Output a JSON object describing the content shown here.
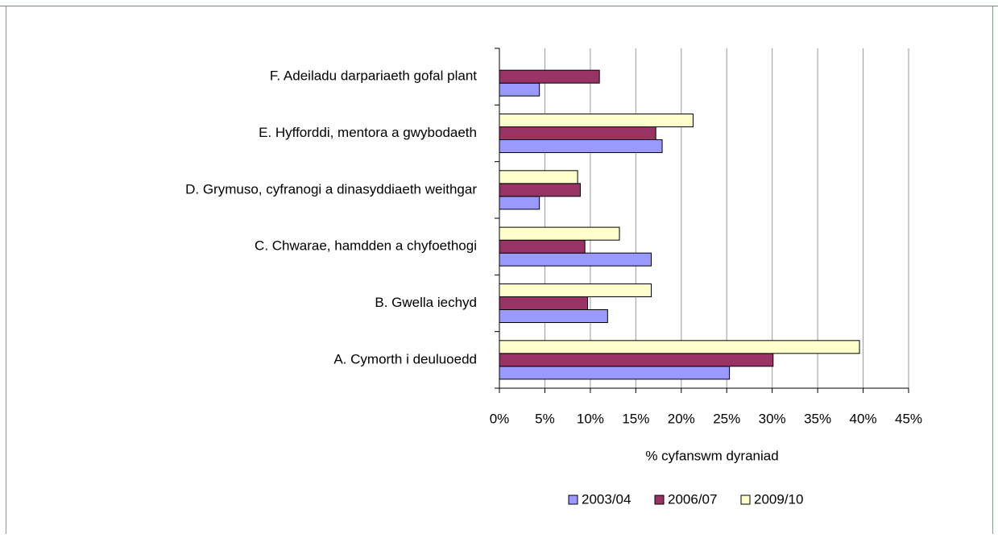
{
  "chart_data": {
    "type": "hbar",
    "categories": [
      "A. Cymorth i deuluoedd",
      "B. Gwella iechyd ",
      "C. Chwarae, hamdden a chyfoethogi",
      "D. Grymuso, cyfranogi a dinasyddiaeth weithgar",
      "E. Hyfforddi, mentora a gwybodaeth",
      "F. Adeiladu darpariaeth gofal plant"
    ],
    "series": [
      {
        "name": "2003/04",
        "color": "#9999ff",
        "values": [
          25.3,
          11.9,
          16.7,
          4.4,
          17.9,
          4.4
        ]
      },
      {
        "name": "2006/07",
        "color": "#993366",
        "values": [
          30.1,
          9.7,
          9.4,
          8.9,
          17.2,
          11.0
        ]
      },
      {
        "name": "2009/10",
        "color": "#ffffcc",
        "values": [
          39.6,
          16.7,
          13.2,
          8.6,
          21.3,
          null
        ]
      }
    ],
    "x_label": "% cyfanswm dyraniad",
    "xlim": [
      0,
      45
    ],
    "xticks": [
      {
        "value": 0,
        "label": "0%"
      },
      {
        "value": 5,
        "label": "5%"
      },
      {
        "value": 10,
        "label": "10%"
      },
      {
        "value": 15,
        "label": "15%"
      },
      {
        "value": 20,
        "label": "20%"
      },
      {
        "value": 25,
        "label": "25%"
      },
      {
        "value": 30,
        "label": "30%"
      },
      {
        "value": 35,
        "label": "35%"
      },
      {
        "value": 40,
        "label": "40%"
      },
      {
        "value": 45,
        "label": "45%"
      }
    ],
    "grid": true,
    "legend": "bottom"
  }
}
